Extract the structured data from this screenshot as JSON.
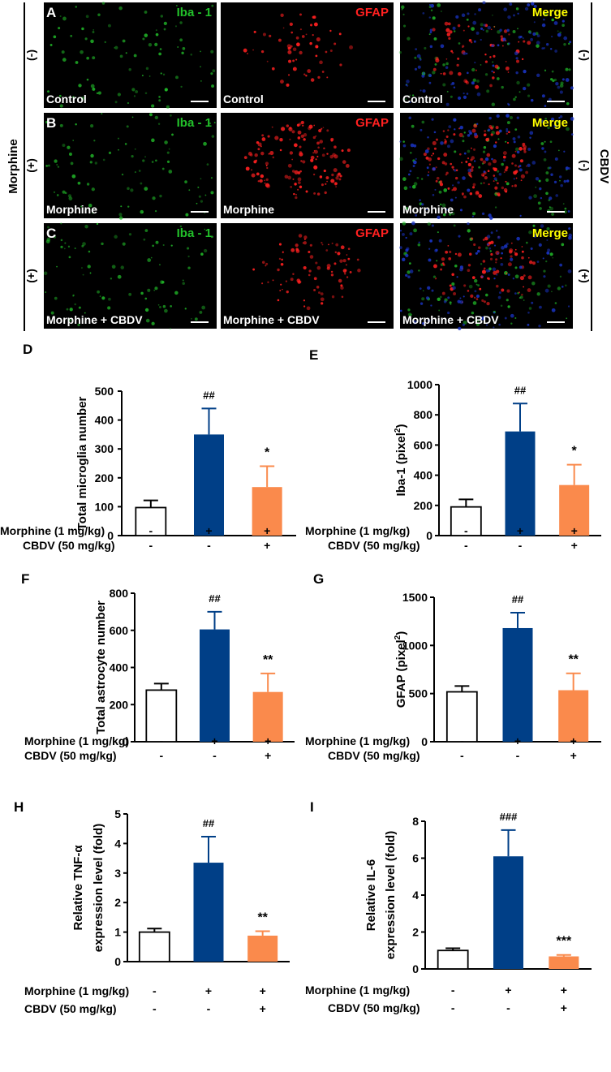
{
  "microscopy": {
    "side_label_left": "Morphine",
    "side_label_right": "CBDV",
    "stain_labels": [
      "Iba - 1",
      "GFAP",
      "Merge"
    ],
    "rows": [
      {
        "panel": "A",
        "morphine": "(-)",
        "cbdv": "(-)",
        "caption": "Control"
      },
      {
        "panel": "B",
        "morphine": "(+)",
        "cbdv": "(-)",
        "caption": "Morphine"
      },
      {
        "panel": "C",
        "morphine": "(+)",
        "cbdv": "(+)",
        "caption": "Morphine + CBDV"
      }
    ],
    "colors": {
      "iba": "#22c02a",
      "gfap": "#ff2020",
      "merge": "#ffff00",
      "nuclei": "#1a35c8"
    }
  },
  "colors": {
    "control": "#ffffff",
    "morphine": "#003f87",
    "cbdv": "#fa8a4c"
  },
  "chart_data": [
    {
      "panel": "D",
      "type": "bar",
      "ylabel": "Total microglia number",
      "ylim": [
        0,
        500
      ],
      "yticks": [
        "0",
        "100",
        "200",
        "300",
        "400",
        "500"
      ],
      "values": [
        97,
        350,
        168
      ],
      "errors": [
        25,
        90,
        72
      ],
      "annotations": [
        "",
        "##",
        "*"
      ],
      "treatment_rows": [
        {
          "label": "Morphine (1 mg/kg)",
          "signs": [
            "-",
            "+",
            "+"
          ]
        },
        {
          "label": "CBDV (50 mg/kg)",
          "signs": [
            "-",
            "-",
            "+"
          ]
        }
      ]
    },
    {
      "panel": "E",
      "type": "bar",
      "ylabel": "Iba-1 (pixel",
      "ylabel_sup": "2",
      "ylabel_end": ")",
      "ylim": [
        0,
        1000
      ],
      "yticks": [
        "0",
        "200",
        "400",
        "600",
        "800",
        "1000"
      ],
      "values": [
        190,
        690,
        335
      ],
      "errors": [
        50,
        185,
        135
      ],
      "annotations": [
        "",
        "##",
        "*"
      ],
      "treatment_rows": [
        {
          "label": "Morphine (1 mg/kg)",
          "signs": [
            "-",
            "+",
            "+"
          ]
        },
        {
          "label": "CBDV (50 mg/kg)",
          "signs": [
            "-",
            "-",
            "+"
          ]
        }
      ]
    },
    {
      "panel": "F",
      "type": "bar",
      "ylabel": "Total astrocyte number",
      "ylim": [
        0,
        800
      ],
      "yticks": [
        "0",
        "200",
        "400",
        "600",
        "800"
      ],
      "values": [
        278,
        605,
        268
      ],
      "errors": [
        35,
        95,
        100
      ],
      "annotations": [
        "",
        "##",
        "**"
      ],
      "treatment_rows": [
        {
          "label": "Morphine (1 mg/kg)",
          "signs": [
            "-",
            "+",
            "+"
          ]
        },
        {
          "label": "CBDV (50 mg/kg)",
          "signs": [
            "-",
            "-",
            "+"
          ]
        }
      ]
    },
    {
      "panel": "G",
      "type": "bar",
      "ylabel": "GFAP (pixel",
      "ylabel_sup": "2",
      "ylabel_end": ")",
      "ylim": [
        0,
        1500
      ],
      "yticks": [
        "0",
        "500",
        "1000",
        "1500"
      ],
      "values": [
        518,
        1180,
        535
      ],
      "errors": [
        60,
        160,
        175
      ],
      "annotations": [
        "",
        "##",
        "**"
      ],
      "treatment_rows": [
        {
          "label": "Morphine (1 mg/kg)",
          "signs": [
            "-",
            "+",
            "+"
          ]
        },
        {
          "label": "CBDV (50 mg/kg)",
          "signs": [
            "-",
            "-",
            "+"
          ]
        }
      ]
    },
    {
      "panel": "H",
      "type": "bar",
      "ylabel_lines": [
        "Relative TNF-α",
        "expression level (fold)"
      ],
      "ylim": [
        0,
        5
      ],
      "yticks": [
        "0",
        "1",
        "2",
        "3",
        "4",
        "5"
      ],
      "values": [
        1.0,
        3.35,
        0.88
      ],
      "errors": [
        0.12,
        0.88,
        0.15
      ],
      "annotations": [
        "",
        "##",
        "**"
      ],
      "treatment_rows": [
        {
          "label": "Morphine (1 mg/kg)",
          "signs": [
            "-",
            "+",
            "+"
          ]
        },
        {
          "label": "CBDV (50 mg/kg)",
          "signs": [
            "-",
            "-",
            "+"
          ]
        }
      ]
    },
    {
      "panel": "I",
      "type": "bar",
      "ylabel_lines": [
        "Relative IL-6",
        "expression level (fold)"
      ],
      "ylim": [
        0,
        8
      ],
      "yticks": [
        "0",
        "2",
        "4",
        "6",
        "8"
      ],
      "values": [
        1.0,
        6.1,
        0.68
      ],
      "errors": [
        0.12,
        1.42,
        0.08
      ],
      "annotations": [
        "",
        "###",
        "***"
      ],
      "treatment_rows": [
        {
          "label": "Morphine (1 mg/kg)",
          "signs": [
            "-",
            "+",
            "+"
          ]
        },
        {
          "label": "CBDV (50 mg/kg)",
          "signs": [
            "-",
            "-",
            "+"
          ]
        }
      ]
    }
  ]
}
